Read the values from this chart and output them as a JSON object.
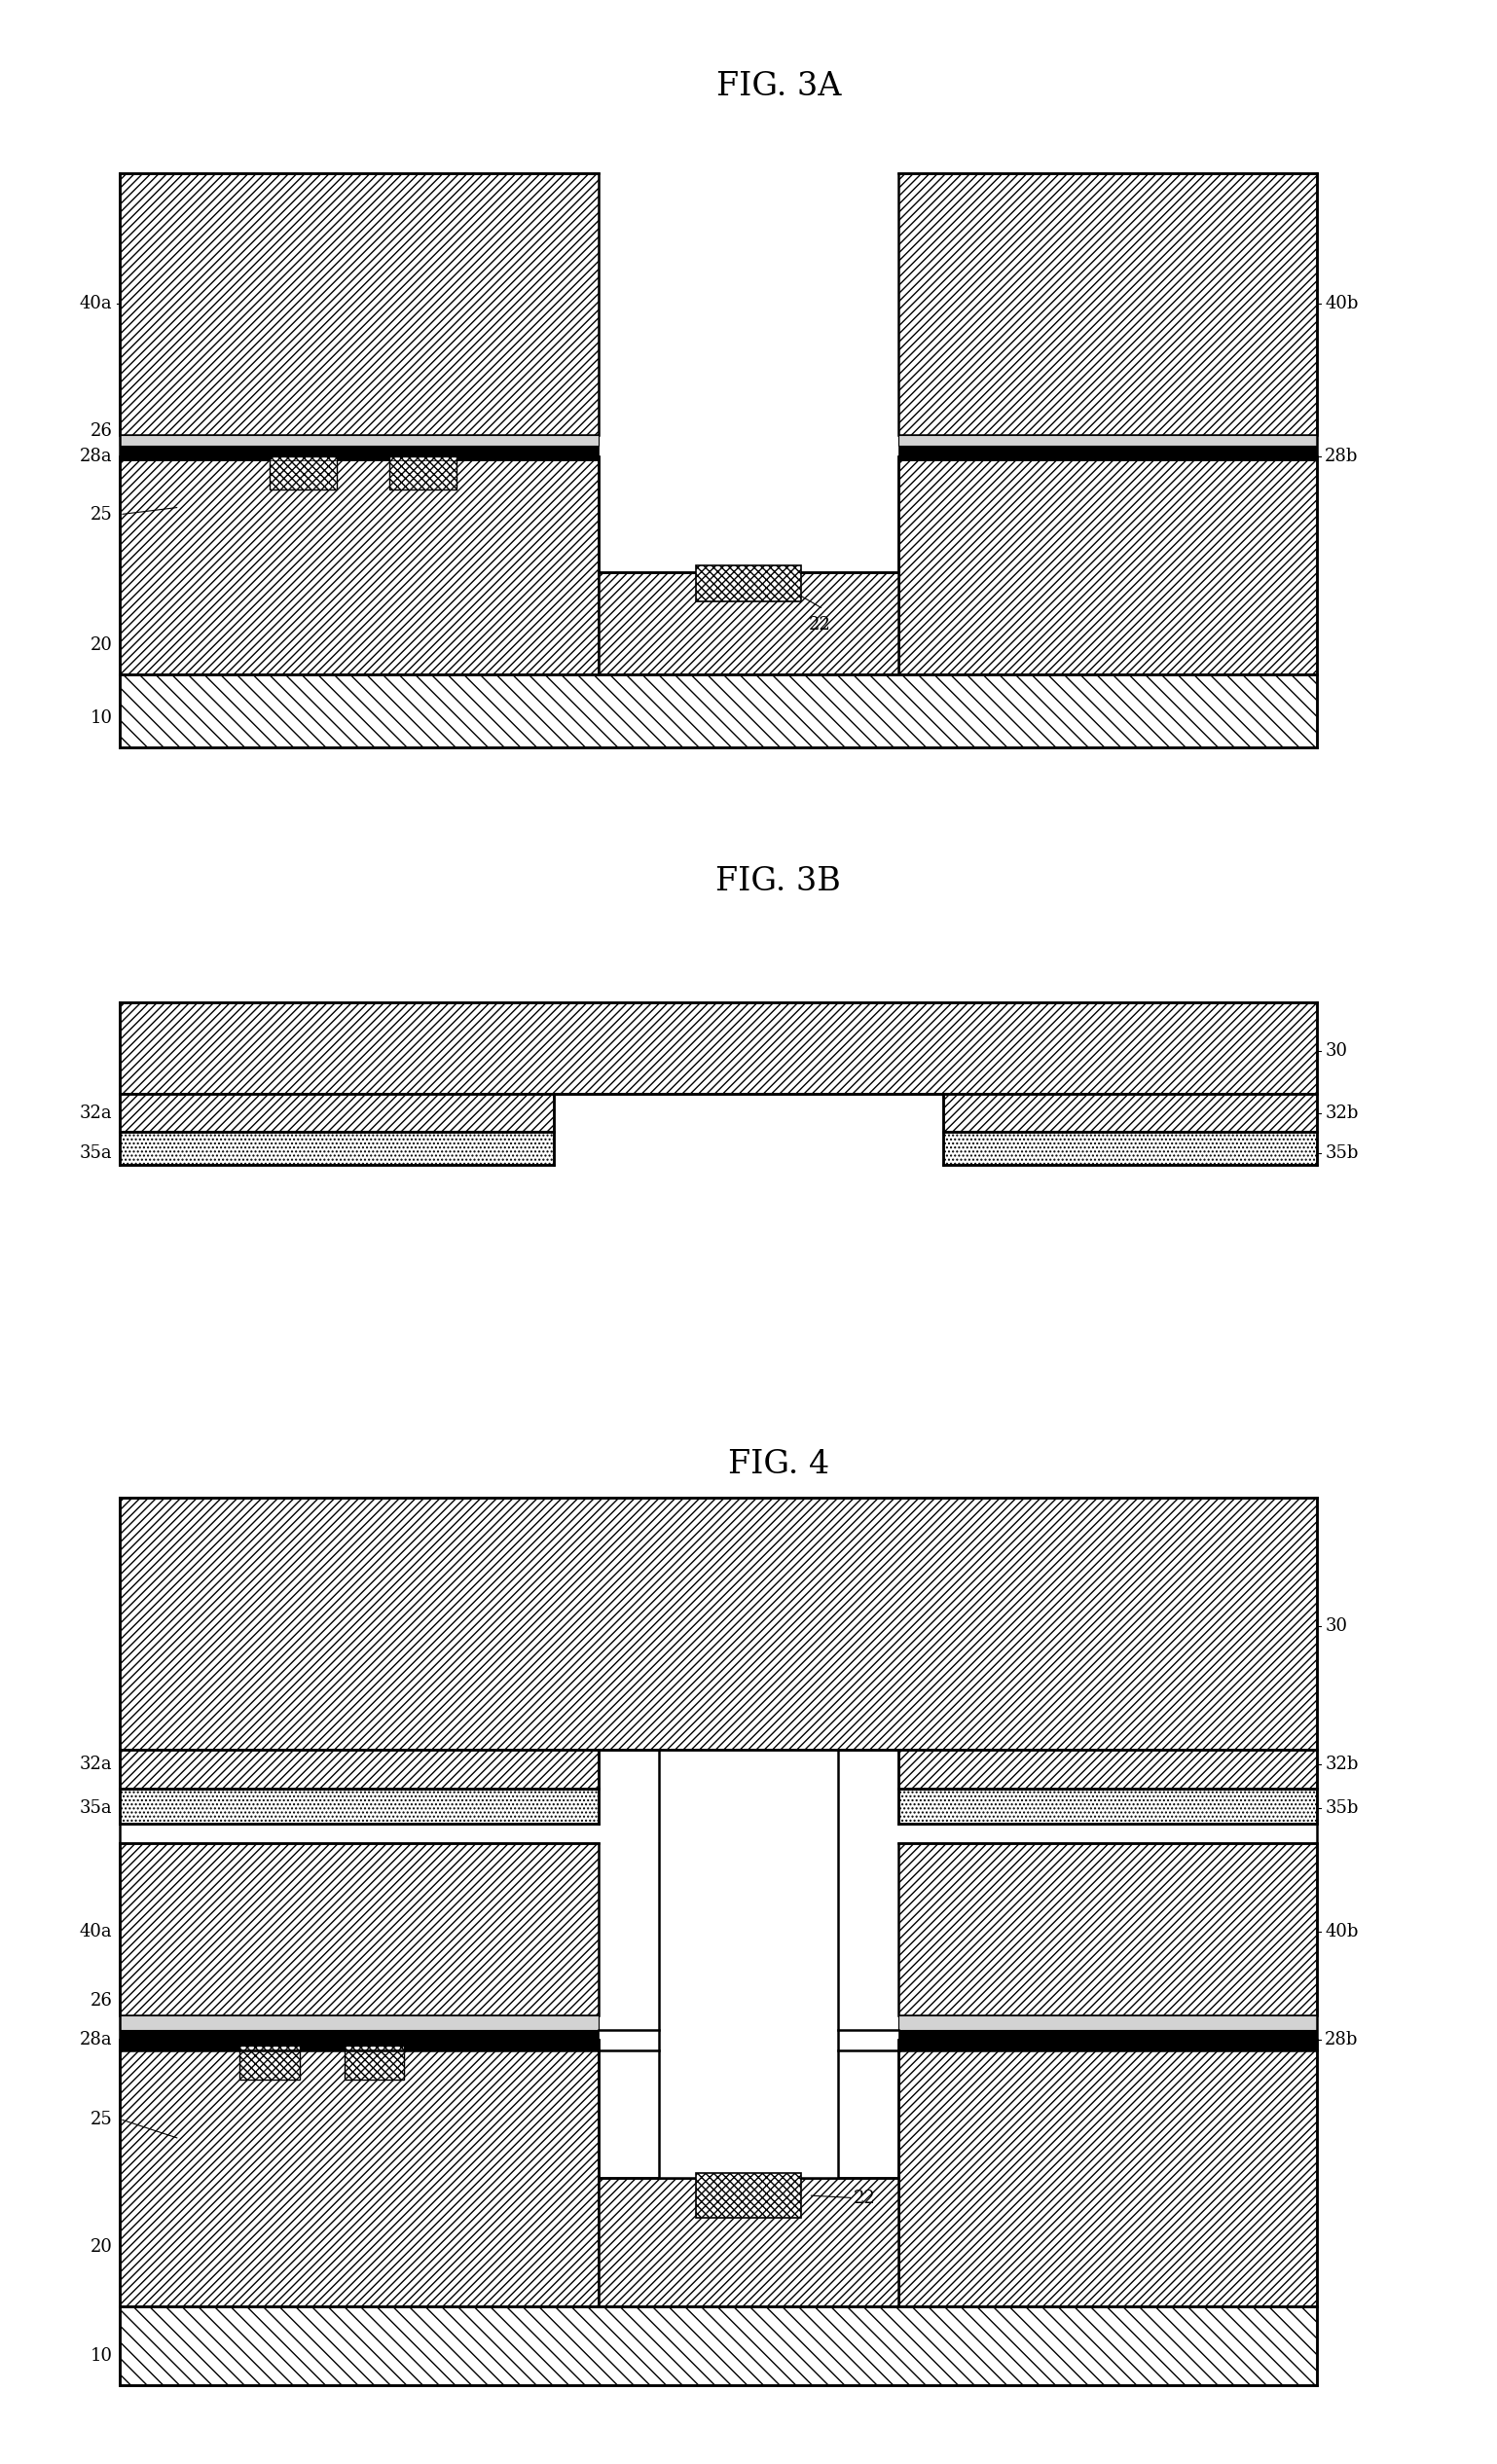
{
  "fig_width": 15.38,
  "fig_height": 25.32,
  "bg_color": "#ffffff",
  "hatch_slash": "////",
  "hatch_back": "\\\\",
  "hatch_cross": "xxxx",
  "hatch_dot": "....",
  "title_3a": "FIG. 3A",
  "title_3b": "FIG. 3B",
  "title_4": "FIG. 4",
  "font_size_title": 24,
  "font_size_label": 13,
  "lw_main": 1.8,
  "lw_thin": 1.2
}
